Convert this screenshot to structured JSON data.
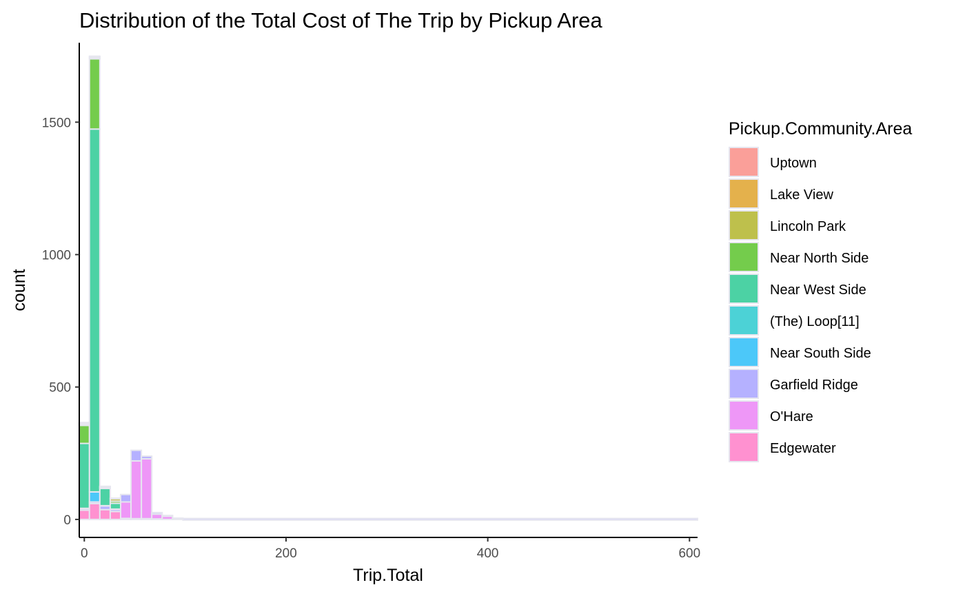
{
  "chart_data": {
    "type": "bar",
    "subtype": "stacked-histogram",
    "title": "Distribution of the Total Cost of The Trip by Pickup Area",
    "xlabel": "Trip.Total",
    "ylabel": "count",
    "xlim": [
      -5,
      608
    ],
    "ylim": [
      -68,
      1800
    ],
    "x_ticks": [
      0,
      200,
      400,
      600
    ],
    "y_ticks": [
      0,
      500,
      1000,
      1500
    ],
    "grid": false,
    "legend": {
      "title": "Pickup.Community.Area",
      "position": "right"
    },
    "bin_width": 10.3,
    "bin_left_edges": [
      -5.2,
      5.1,
      15.4,
      25.7,
      36.0,
      46.3,
      56.6,
      66.9,
      77.2,
      87.5
    ],
    "series": [
      {
        "name": "Uptown",
        "color": "#F8766D",
        "values": [
          3,
          2,
          1,
          1,
          0,
          0,
          0,
          0,
          0,
          0
        ]
      },
      {
        "name": "Lake View",
        "color": "#D89000",
        "values": [
          4,
          3,
          2,
          1,
          0,
          0,
          0,
          0,
          0,
          0
        ]
      },
      {
        "name": "Lincoln Park",
        "color": "#A3A500",
        "values": [
          4,
          5,
          3,
          9,
          0,
          0,
          0,
          0,
          0,
          0
        ]
      },
      {
        "name": "Near North Side",
        "color": "#39B600",
        "values": [
          68,
          265,
          2,
          8,
          0,
          0,
          0,
          0,
          0,
          0
        ]
      },
      {
        "name": "Near West Side",
        "color": "#00BF7D",
        "values": [
          245,
          1370,
          65,
          22,
          0,
          0,
          0,
          0,
          0,
          0
        ]
      },
      {
        "name": "(The)  Loop[11]",
        "color": "#00BFC4",
        "values": [
          0,
          0,
          0,
          0,
          0,
          0,
          0,
          0,
          0,
          0
        ]
      },
      {
        "name": "Near South Side",
        "color": "#00B0F6",
        "values": [
          1,
          38,
          1,
          1,
          0,
          0,
          0,
          0,
          0,
          0
        ]
      },
      {
        "name": "Garfield Ridge",
        "color": "#9590FF",
        "values": [
          6,
          6,
          14,
          8,
          28,
          40,
          10,
          6,
          3,
          0
        ]
      },
      {
        "name": "O'Hare",
        "color": "#E76BF3",
        "values": [
          0,
          0,
          0,
          0,
          62,
          218,
          226,
          18,
          12,
          5
        ]
      },
      {
        "name": "Edgewater",
        "color": "#FF62BC",
        "values": [
          35,
          60,
          37,
          30,
          4,
          3,
          3,
          2,
          0,
          0
        ]
      }
    ],
    "tail_range": [
      97.8,
      608
    ],
    "tail_value": 1
  }
}
